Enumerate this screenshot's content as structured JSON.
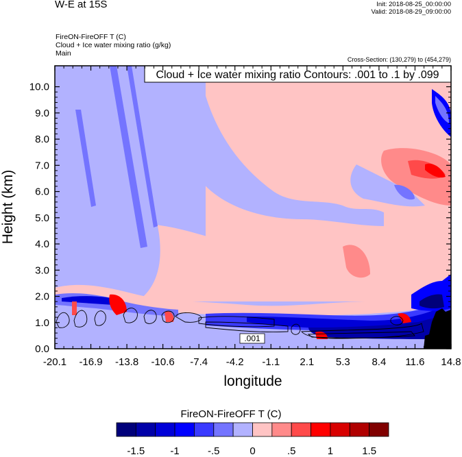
{
  "header": {
    "title": "W-E at 15S",
    "init": "Init: 2018-08-25_00:00:00",
    "valid": "Valid: 2018-08-29_09:00:00",
    "field_line1": "FireON-FireOFF T   (C)",
    "field_line2": "Cloud + Ice water mixing ratio   (g/kg)",
    "field_line3": "Main",
    "cross_section": "Cross-Section: (130,279) to (454,279)"
  },
  "chart_data": {
    "type": "heatmap",
    "title": "W-E at 15S",
    "xlabel": "longitude",
    "ylabel": "Height (km)",
    "x_ticks": [
      "-20.1",
      "-16.9",
      "-13.8",
      "-10.6",
      "-7.4",
      "-4.2",
      "-1.1",
      "2.1",
      "5.3",
      "8.4",
      "11.6",
      "14.8"
    ],
    "y_ticks": [
      "0.0",
      "1.0",
      "2.0",
      "3.0",
      "4.0",
      "5.0",
      "6.0",
      "7.0",
      "8.0",
      "9.0",
      "10.0"
    ],
    "xlim": [
      -20.1,
      14.8
    ],
    "ylim": [
      0,
      10.8
    ],
    "contour_info": "Cloud + Ice water mixing ratio Contours: .001 to .1 by .099",
    "contour_label": ".001",
    "colorbar": {
      "title": "FireON-FireOFF T  (C)",
      "labels": [
        "-1.5",
        "-1",
        "-.5",
        "0",
        ".5",
        "1",
        "1.5"
      ],
      "colors": [
        "#00007a",
        "#0000a8",
        "#0000d8",
        "#0000ff",
        "#3a3aff",
        "#7474ff",
        "#b2b2ff",
        "#ffc4c4",
        "#ff8a8a",
        "#ff4a4a",
        "#ff0000",
        "#d80000",
        "#b00000",
        "#800000"
      ]
    }
  }
}
